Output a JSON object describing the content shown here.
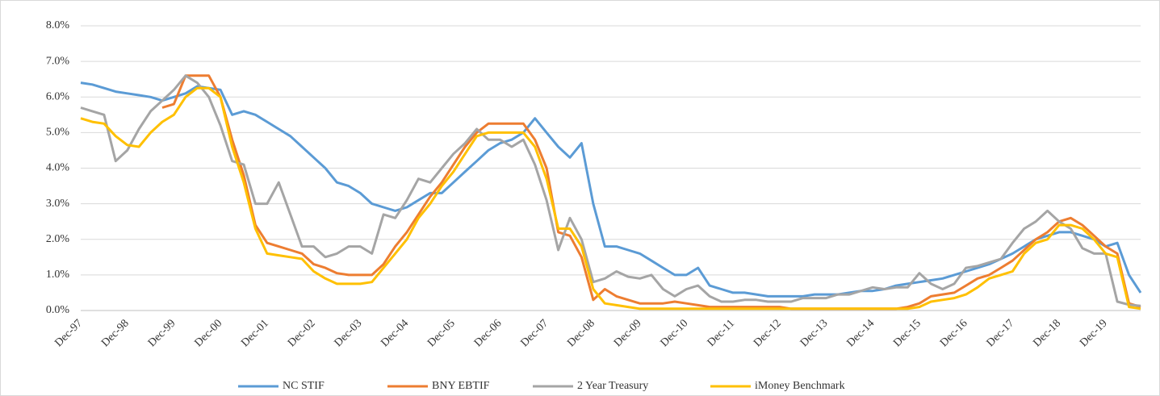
{
  "chart_data": {
    "type": "line",
    "categories": [
      "Dec-97",
      null,
      null,
      null,
      "Dec-98",
      null,
      null,
      null,
      "Dec-99",
      null,
      null,
      null,
      "Dec-00",
      null,
      null,
      null,
      "Dec-01",
      null,
      null,
      null,
      "Dec-02",
      null,
      null,
      null,
      "Dec-03",
      null,
      null,
      null,
      "Dec-04",
      null,
      null,
      null,
      "Dec-05",
      null,
      null,
      null,
      "Dec-06",
      null,
      null,
      null,
      "Dec-07",
      null,
      null,
      null,
      "Dec-08",
      null,
      null,
      null,
      "Dec-09",
      null,
      null,
      null,
      "Dec-10",
      null,
      null,
      null,
      "Dec-11",
      null,
      null,
      null,
      "Dec-12",
      null,
      null,
      null,
      "Dec-13",
      null,
      null,
      null,
      "Dec-14",
      null,
      null,
      null,
      "Dec-15",
      null,
      null,
      null,
      "Dec-16",
      null,
      null,
      null,
      "Dec-17",
      null,
      null,
      null,
      "Dec-18",
      null,
      null,
      null,
      "Dec-19",
      null,
      null,
      null
    ],
    "series": [
      {
        "name": "NC STIF",
        "color": "#5b9bd5",
        "values": [
          6.4,
          6.35,
          6.25,
          6.15,
          6.1,
          6.05,
          6.0,
          5.9,
          6.0,
          6.1,
          6.3,
          6.25,
          6.2,
          5.5,
          5.6,
          5.5,
          5.3,
          5.1,
          4.9,
          4.6,
          4.3,
          4.0,
          3.6,
          3.5,
          3.3,
          3.0,
          2.9,
          2.8,
          2.9,
          3.1,
          3.3,
          3.3,
          3.6,
          3.9,
          4.2,
          4.5,
          4.7,
          4.8,
          5.0,
          5.4,
          5.0,
          4.6,
          4.3,
          4.7,
          3.0,
          1.8,
          1.8,
          1.7,
          1.6,
          1.4,
          1.2,
          1.0,
          1.0,
          1.2,
          0.7,
          0.6,
          0.5,
          0.5,
          0.45,
          0.4,
          0.4,
          0.4,
          0.4,
          0.45,
          0.45,
          0.45,
          0.5,
          0.55,
          0.55,
          0.6,
          0.7,
          0.75,
          0.8,
          0.85,
          0.9,
          1.0,
          1.1,
          1.2,
          1.3,
          1.45,
          1.6,
          1.8,
          2.0,
          2.1,
          2.2,
          2.2,
          2.1,
          2.0,
          1.8,
          1.9,
          1.0,
          0.5
        ]
      },
      {
        "name": "BNY EBTIF",
        "color": "#ed7d31",
        "values": [
          null,
          null,
          null,
          null,
          null,
          null,
          null,
          5.7,
          5.8,
          6.6,
          6.6,
          6.6,
          6.0,
          4.8,
          3.8,
          2.4,
          1.9,
          1.8,
          1.7,
          1.6,
          1.3,
          1.2,
          1.05,
          1.0,
          1.0,
          1.0,
          1.3,
          1.8,
          2.2,
          2.7,
          3.2,
          3.6,
          4.1,
          4.6,
          5.0,
          5.25,
          5.25,
          5.25,
          5.25,
          4.8,
          4.0,
          2.2,
          2.1,
          1.5,
          0.3,
          0.6,
          0.4,
          0.3,
          0.2,
          0.2,
          0.2,
          0.25,
          0.2,
          0.15,
          0.1,
          0.1,
          0.1,
          0.1,
          0.1,
          0.1,
          0.1,
          0.05,
          0.05,
          0.05,
          0.05,
          0.05,
          0.05,
          0.05,
          0.05,
          0.05,
          0.05,
          0.1,
          0.2,
          0.4,
          0.45,
          0.5,
          0.7,
          0.9,
          1.0,
          1.2,
          1.4,
          1.7,
          2.0,
          2.2,
          2.5,
          2.6,
          2.4,
          2.1,
          1.8,
          1.6,
          0.2,
          0.1
        ]
      },
      {
        "name": "2 Year Treasury",
        "color": "#a5a5a5",
        "values": [
          5.7,
          5.6,
          5.5,
          4.2,
          4.5,
          5.1,
          5.6,
          5.9,
          6.2,
          6.6,
          6.4,
          6.0,
          5.2,
          4.2,
          4.1,
          3.0,
          3.0,
          3.6,
          2.7,
          1.8,
          1.8,
          1.5,
          1.6,
          1.8,
          1.8,
          1.6,
          2.7,
          2.6,
          3.1,
          3.7,
          3.6,
          4.0,
          4.4,
          4.7,
          5.1,
          4.8,
          4.8,
          4.6,
          4.8,
          4.1,
          3.1,
          1.7,
          2.6,
          2.0,
          0.8,
          0.9,
          1.1,
          0.95,
          0.9,
          1.0,
          0.6,
          0.4,
          0.6,
          0.7,
          0.4,
          0.25,
          0.25,
          0.3,
          0.3,
          0.25,
          0.25,
          0.25,
          0.35,
          0.35,
          0.35,
          0.45,
          0.45,
          0.55,
          0.65,
          0.6,
          0.65,
          0.65,
          1.05,
          0.75,
          0.6,
          0.75,
          1.2,
          1.25,
          1.35,
          1.45,
          1.9,
          2.3,
          2.5,
          2.8,
          2.5,
          2.3,
          1.75,
          1.6,
          1.6,
          0.25,
          0.16,
          0.13
        ]
      },
      {
        "name": "iMoney Benchmark",
        "color": "#ffc000",
        "values": [
          5.4,
          5.3,
          5.25,
          4.9,
          4.65,
          4.6,
          5.0,
          5.3,
          5.5,
          6.0,
          6.25,
          6.25,
          6.0,
          4.6,
          3.6,
          2.3,
          1.6,
          1.55,
          1.5,
          1.45,
          1.1,
          0.9,
          0.75,
          0.75,
          0.75,
          0.8,
          1.2,
          1.6,
          2.0,
          2.6,
          3.0,
          3.5,
          3.9,
          4.4,
          4.9,
          5.0,
          5.0,
          5.0,
          5.0,
          4.6,
          3.7,
          2.3,
          2.3,
          1.8,
          0.6,
          0.2,
          0.15,
          0.1,
          0.05,
          0.05,
          0.05,
          0.05,
          0.05,
          0.05,
          0.05,
          0.05,
          0.05,
          0.05,
          0.05,
          0.05,
          0.05,
          0.05,
          0.05,
          0.05,
          0.05,
          0.05,
          0.05,
          0.05,
          0.05,
          0.05,
          0.05,
          0.05,
          0.1,
          0.25,
          0.3,
          0.35,
          0.45,
          0.65,
          0.9,
          1.0,
          1.1,
          1.6,
          1.9,
          2.0,
          2.4,
          2.4,
          2.3,
          2.0,
          1.6,
          1.5,
          0.1,
          0.05
        ]
      }
    ],
    "ylim": [
      0,
      8
    ],
    "yticks": [
      {
        "value": 0,
        "label": "0.0%"
      },
      {
        "value": 1,
        "label": "1.0%"
      },
      {
        "value": 2,
        "label": "2.0%"
      },
      {
        "value": 3,
        "label": "3.0%"
      },
      {
        "value": 4,
        "label": "4.0%"
      },
      {
        "value": 5,
        "label": "5.0%"
      },
      {
        "value": 6,
        "label": "6.0%"
      },
      {
        "value": 7,
        "label": "7.0%"
      },
      {
        "value": 8,
        "label": "8.0%"
      }
    ],
    "grid": true,
    "legend": "bottom"
  }
}
